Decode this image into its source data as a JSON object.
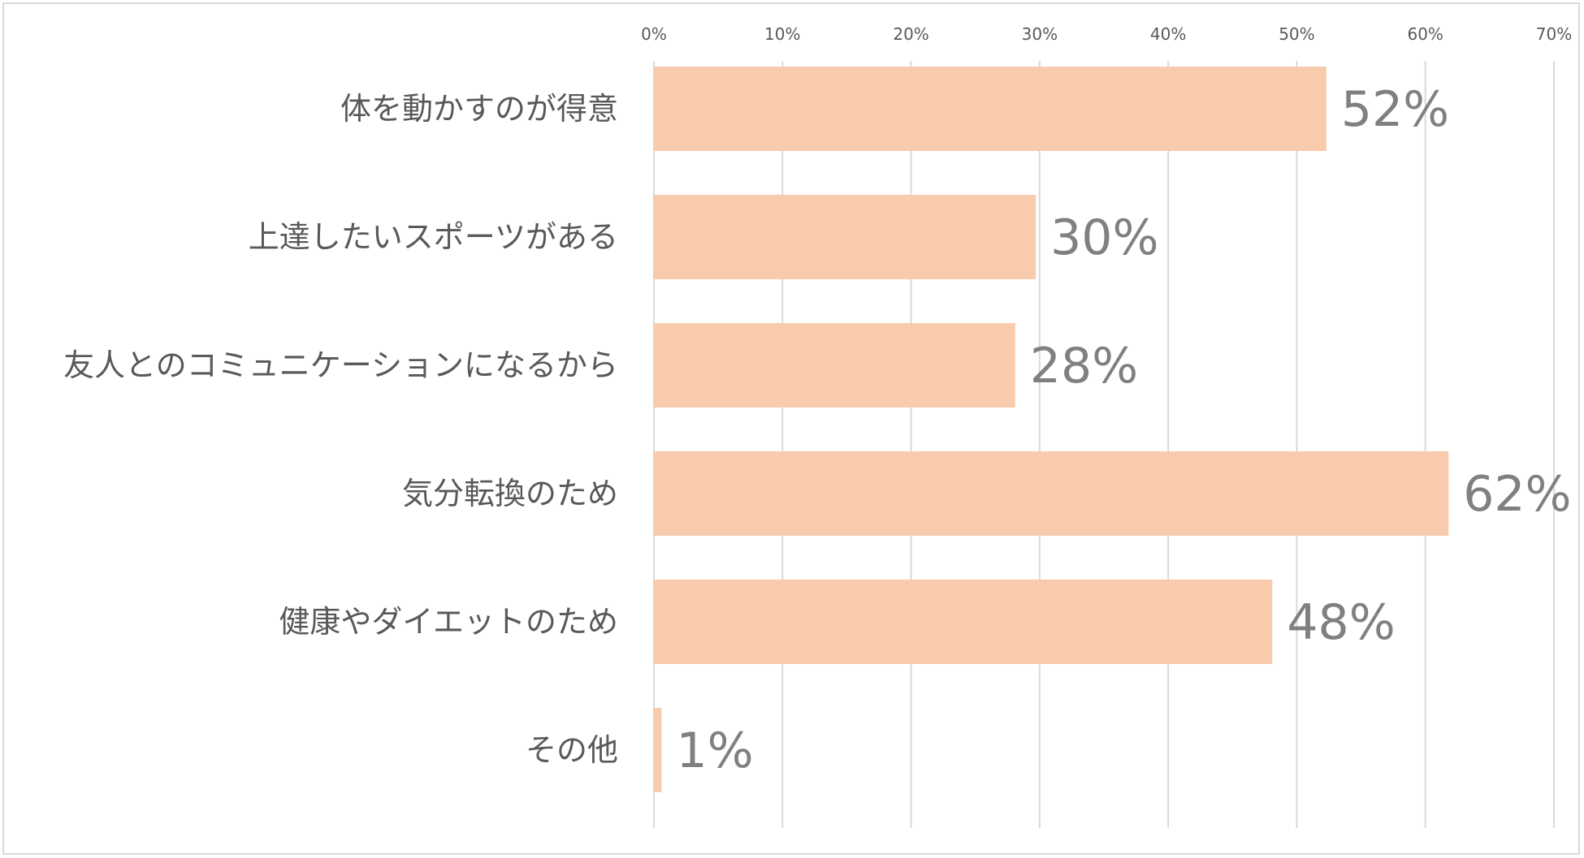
{
  "chart_data": {
    "type": "bar",
    "orientation": "horizontal",
    "title": "",
    "xlabel": "",
    "ylabel": "",
    "xlim": [
      0,
      70
    ],
    "x_ticks": [
      "0%",
      "10%",
      "20%",
      "30%",
      "40%",
      "50%",
      "60%",
      "70%"
    ],
    "x_axis_position": "top",
    "grid": true,
    "categories": [
      "体を動かすのが得意",
      "上達したいスポーツがある",
      "友人とのコミュニケーションになるから",
      "気分転換のため",
      "健康やダイエットのため",
      "その他"
    ],
    "values": [
      52.3,
      29.7,
      28.1,
      61.8,
      48.1,
      0.6
    ],
    "data_labels": [
      "52%",
      "30%",
      "28%",
      "62%",
      "48%",
      "1%"
    ],
    "bar_color": "#F8CBAD",
    "gridline_color": "#D9D9D9",
    "text_color": "#595959",
    "data_label_color": "#808080"
  }
}
